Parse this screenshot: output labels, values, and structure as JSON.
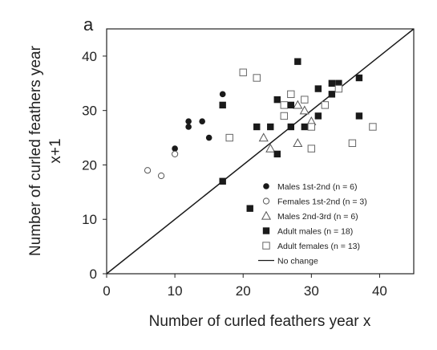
{
  "chart_data": {
    "type": "scatter",
    "panel_label": "a",
    "xlabel": "Number of curled feathers year x",
    "ylabel_lines": [
      "Number of curled feathers year",
      "x+1"
    ],
    "xlim": [
      0,
      45
    ],
    "ylim": [
      0,
      45
    ],
    "xticks": [
      0,
      10,
      20,
      30,
      40
    ],
    "yticks": [
      0,
      10,
      20,
      30,
      40
    ],
    "grid": false,
    "legend_position": "lower-right",
    "colors": {
      "marker": "#1a1a1a",
      "hollow_fill": "#ffffff",
      "axis": "#222222"
    },
    "series": [
      {
        "name": "Males 1st-2nd (n = 6)",
        "marker": "filled-circle",
        "points": [
          [
            10,
            23
          ],
          [
            12,
            28
          ],
          [
            12,
            27
          ],
          [
            14,
            28
          ],
          [
            15,
            25
          ],
          [
            17,
            33
          ]
        ]
      },
      {
        "name": "Females 1st-2nd (n = 3)",
        "marker": "open-circle",
        "points": [
          [
            6,
            19
          ],
          [
            8,
            18
          ],
          [
            10,
            22
          ]
        ]
      },
      {
        "name": "Males 2nd-3rd (n = 6)",
        "marker": "open-triangle",
        "points": [
          [
            23,
            25
          ],
          [
            24,
            23
          ],
          [
            28,
            31
          ],
          [
            28,
            24
          ],
          [
            29,
            30
          ],
          [
            30,
            28
          ]
        ]
      },
      {
        "name": "Adult males (n = 18)",
        "marker": "filled-square",
        "points": [
          [
            17,
            31
          ],
          [
            17,
            17
          ],
          [
            21,
            12
          ],
          [
            22,
            27
          ],
          [
            24,
            27
          ],
          [
            25,
            22
          ],
          [
            25,
            32
          ],
          [
            27,
            27
          ],
          [
            27,
            31
          ],
          [
            28,
            39
          ],
          [
            29,
            27
          ],
          [
            31,
            34
          ],
          [
            31,
            29
          ],
          [
            33,
            33
          ],
          [
            33,
            35
          ],
          [
            34,
            35
          ],
          [
            37,
            36
          ],
          [
            37,
            29
          ]
        ]
      },
      {
        "name": "Adult females (n = 13)",
        "marker": "open-square",
        "points": [
          [
            18,
            25
          ],
          [
            20,
            37
          ],
          [
            22,
            36
          ],
          [
            26,
            29
          ],
          [
            26,
            31
          ],
          [
            27,
            33
          ],
          [
            29,
            32
          ],
          [
            30,
            27
          ],
          [
            30,
            23
          ],
          [
            32,
            31
          ],
          [
            34,
            34
          ],
          [
            36,
            24
          ],
          [
            39,
            27
          ]
        ]
      },
      {
        "name": "No change",
        "marker": "line",
        "points": [
          [
            0,
            0
          ],
          [
            45,
            45
          ]
        ]
      }
    ]
  }
}
